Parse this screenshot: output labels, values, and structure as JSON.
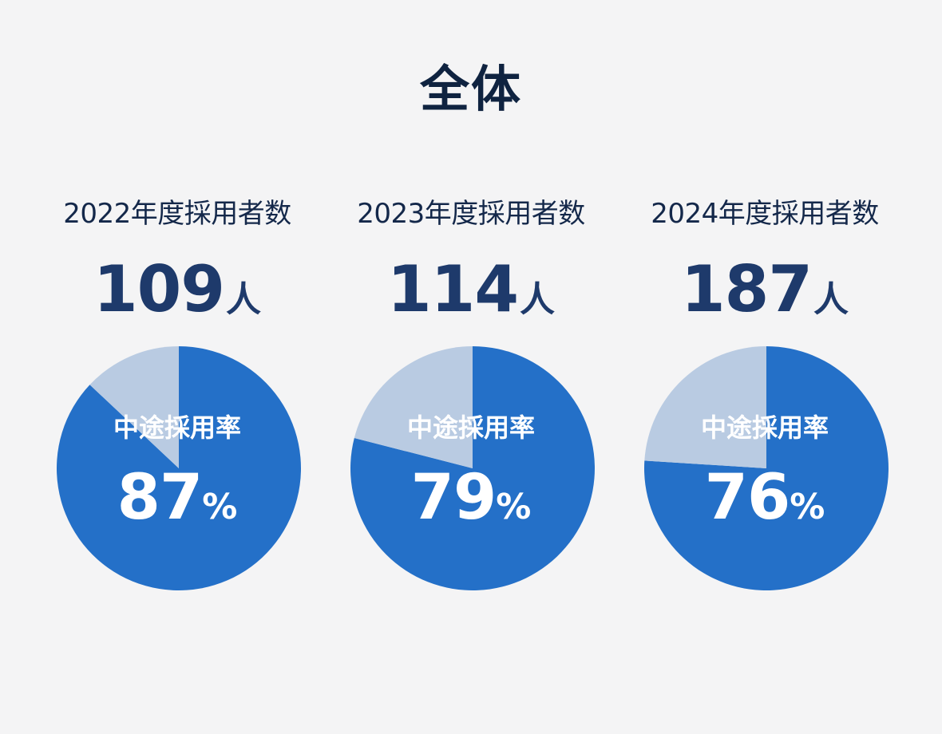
{
  "page": {
    "title": "全体"
  },
  "colors": {
    "primary": "#2470c8",
    "secondary": "#b9cbe2",
    "background": "#f4f4f5"
  },
  "chart_data": [
    {
      "type": "pie",
      "label": "2022年度採用者数",
      "count": "109",
      "count_unit": "人",
      "center_label": "中途採用率",
      "rate": "87",
      "rate_unit": "%",
      "slices": [
        {
          "category": "中途採用",
          "value": 87
        },
        {
          "category": "other",
          "value": 13
        }
      ]
    },
    {
      "type": "pie",
      "label": "2023年度採用者数",
      "count": "114",
      "count_unit": "人",
      "center_label": "中途採用率",
      "rate": "79",
      "rate_unit": "%",
      "slices": [
        {
          "category": "中途採用",
          "value": 79
        },
        {
          "category": "other",
          "value": 21
        }
      ]
    },
    {
      "type": "pie",
      "label": "2024年度採用者数",
      "count": "187",
      "count_unit": "人",
      "center_label": "中途採用率",
      "rate": "76",
      "rate_unit": "%",
      "slices": [
        {
          "category": "中途採用",
          "value": 76
        },
        {
          "category": "other",
          "value": 24
        }
      ]
    }
  ]
}
